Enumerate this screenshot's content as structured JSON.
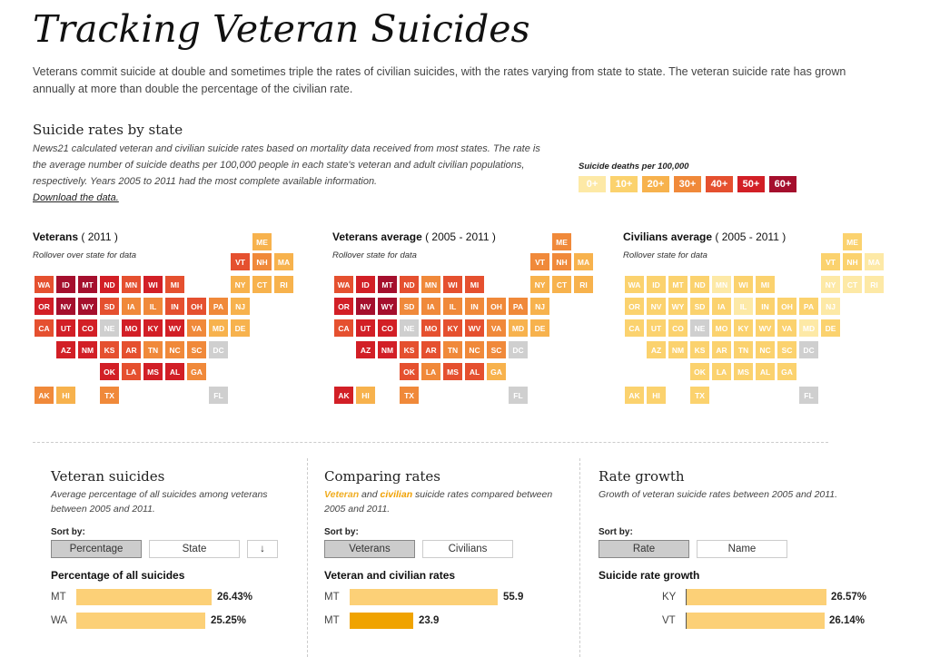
{
  "page": {
    "title": "Tracking Veteran Suicides",
    "intro": "Veterans commit suicide at double and sometimes triple the rates of civilian suicides, with the rates varying from state to state. The veteran suicide rate has grown annually at more than double the percentage of the civilian rate."
  },
  "rates_section": {
    "title": "Suicide rates by state",
    "desc": "News21 calculated veteran and civilian suicide rates based on mortality data received from most states. The rate is the average number of suicide deaths per 100,000 people in each state's veteran and adult civilian populations, respectively. Years 2005 to 2011 had the most complete available information.",
    "download": "Download the data."
  },
  "legend": {
    "title": "Suicide deaths per 100,000",
    "items": [
      {
        "label": "0+",
        "color": "#fde9a6"
      },
      {
        "label": "10+",
        "color": "#fbd26e"
      },
      {
        "label": "20+",
        "color": "#f7b24d"
      },
      {
        "label": "30+",
        "color": "#f0893a"
      },
      {
        "label": "40+",
        "color": "#e5502f"
      },
      {
        "label": "50+",
        "color": "#d21f26"
      },
      {
        "label": "60+",
        "color": "#a50f2d"
      }
    ],
    "no_data_color": "#cfcfcf"
  },
  "maps": [
    {
      "title": "Veterans",
      "years": " ( 2011 )",
      "sub": "Rollover over state for data",
      "states": {
        "ME": 2,
        "VT": 4,
        "NH": 3,
        "MA": 2,
        "WA": 4,
        "ID": 6,
        "MT": 6,
        "ND": 5,
        "MN": 4,
        "WI": 5,
        "MI": 4,
        "NY": 2,
        "CT": 2,
        "RI": 2,
        "OR": 5,
        "NV": 6,
        "WY": 6,
        "SD": 4,
        "IA": 3,
        "IL": 3,
        "IN": 4,
        "OH": 4,
        "PA": 3,
        "NJ": 2,
        "CA": 4,
        "UT": 5,
        "CO": 5,
        "NE": -1,
        "MO": 5,
        "KY": 5,
        "WV": 5,
        "VA": 3,
        "MD": 2,
        "DE": 2,
        "AZ": 5,
        "NM": 5,
        "KS": 4,
        "AR": 4,
        "TN": 3,
        "NC": 3,
        "SC": 3,
        "DC": -1,
        "OK": 5,
        "LA": 4,
        "MS": 5,
        "AL": 5,
        "GA": 3,
        "AK": 3,
        "HI": 2,
        "TX": 3,
        "FL": -1
      }
    },
    {
      "title": "Veterans average",
      "years": " ( 2005 - 2011 )",
      "sub": "Rollover state for data",
      "states": {
        "ME": 3,
        "VT": 3,
        "NH": 3,
        "MA": 2,
        "WA": 4,
        "ID": 5,
        "MT": 6,
        "ND": 4,
        "MN": 3,
        "WI": 4,
        "MI": 4,
        "NY": 2,
        "CT": 2,
        "RI": 2,
        "OR": 5,
        "NV": 6,
        "WY": 6,
        "SD": 3,
        "IA": 3,
        "IL": 3,
        "IN": 3,
        "OH": 3,
        "PA": 3,
        "NJ": 2,
        "CA": 4,
        "UT": 5,
        "CO": 5,
        "NE": -1,
        "MO": 4,
        "KY": 4,
        "WV": 4,
        "VA": 3,
        "MD": 2,
        "DE": 2,
        "AZ": 5,
        "NM": 5,
        "KS": 4,
        "AR": 4,
        "TN": 3,
        "NC": 3,
        "SC": 3,
        "DC": -1,
        "OK": 4,
        "LA": 3,
        "MS": 4,
        "AL": 4,
        "GA": 2,
        "AK": 5,
        "HI": 2,
        "TX": 3,
        "FL": -1
      }
    },
    {
      "title": "Civilians average",
      "years": " ( 2005 - 2011 )",
      "sub": "Rollover state for data",
      "states": {
        "ME": 1,
        "VT": 1,
        "NH": 1,
        "MA": 0,
        "WA": 1,
        "ID": 1,
        "MT": 1,
        "ND": 1,
        "MN": 0,
        "WI": 1,
        "MI": 1,
        "NY": 0,
        "CT": 0,
        "RI": 0,
        "OR": 1,
        "NV": 1,
        "WY": 1,
        "SD": 1,
        "IA": 1,
        "IL": 0,
        "IN": 1,
        "OH": 1,
        "PA": 1,
        "NJ": 0,
        "CA": 1,
        "UT": 1,
        "CO": 1,
        "NE": -1,
        "MO": 1,
        "KY": 1,
        "WV": 1,
        "VA": 1,
        "MD": 0,
        "DE": 1,
        "AZ": 1,
        "NM": 1,
        "KS": 1,
        "AR": 1,
        "TN": 1,
        "NC": 1,
        "SC": 1,
        "DC": -1,
        "OK": 1,
        "LA": 1,
        "MS": 1,
        "AL": 1,
        "GA": 1,
        "AK": 1,
        "HI": 1,
        "TX": 1,
        "FL": -1
      }
    }
  ],
  "panels": [
    {
      "title": "Veteran suicides",
      "desc": "Average percentage of all suicides among veterans between 2005 and 2011.",
      "sort_label": "Sort by:",
      "btn1": "Percentage",
      "btn2": "State",
      "btn3": "↓",
      "chart_title": "Percentage of all suicides",
      "rows": [
        {
          "state": "MT",
          "value": 26.43,
          "text": "26.43%"
        },
        {
          "state": "WA",
          "value": 25.25,
          "text": "25.25%"
        }
      ],
      "scale_max": 29
    },
    {
      "title": "Comparing rates",
      "desc_vet": "Veteran",
      "desc_and": " and ",
      "desc_civ": "civilian",
      "desc_rest": " suicide rates compared between 2005 and 2011.",
      "sort_label": "Sort by:",
      "btn1": "Veterans",
      "btn2": "Civilians",
      "chart_title": "Veteran and civilian rates",
      "rows": [
        {
          "state": "MT",
          "value": 55.9,
          "text": "55.9"
        },
        {
          "state": "MT",
          "value": 23.9,
          "text": "23.9"
        }
      ],
      "scale_max": 55.9
    },
    {
      "title": "Rate growth",
      "desc": "Growth of veteran suicide rates between 2005 and 2011.",
      "sort_label": "Sort by:",
      "btn1": "Rate",
      "btn2": "Name",
      "chart_title": "Suicide rate growth",
      "rows": [
        {
          "state": "KY",
          "value": 26.57,
          "text": "26.57%"
        },
        {
          "state": "VT",
          "value": 26.14,
          "text": "26.14%"
        }
      ],
      "scale_max": 26.57
    }
  ]
}
